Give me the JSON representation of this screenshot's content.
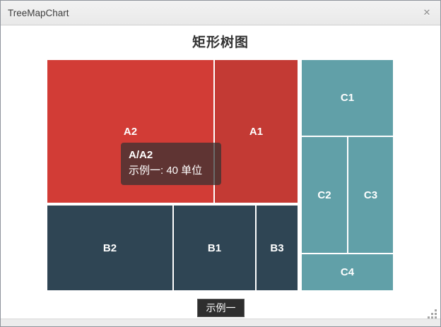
{
  "window": {
    "title": "TreeMapChart",
    "close_glyph": "✕"
  },
  "chart_data": {
    "type": "treemap",
    "title": "矩形树图",
    "series_name": "示例一",
    "value_unit": "单位",
    "breadcrumb": "示例一",
    "tooltip": {
      "path": "A/A2",
      "detail": "示例一: 40 单位",
      "value": 40
    },
    "colors": {
      "group_a": "#d23c36",
      "group_a_dark": "#c33a34",
      "group_b": "#2f4554",
      "group_c": "#61a0a8",
      "tooltip_bg": "rgba(50,50,50,0.72)",
      "breadcrumb_bg": "#2e2e2e"
    },
    "nodes": [
      {
        "label": "A2",
        "group": "A",
        "color": "#d23c36",
        "value": 40
      },
      {
        "label": "A1",
        "group": "A",
        "color": "#c33a34",
        "estimated_value": 20
      },
      {
        "label": "B2",
        "group": "B",
        "color": "#2f4554",
        "estimated_value": 18
      },
      {
        "label": "B1",
        "group": "B",
        "color": "#2f4554",
        "estimated_value": 12
      },
      {
        "label": "B3",
        "group": "B",
        "color": "#2f4554",
        "estimated_value": 6
      },
      {
        "label": "C1",
        "group": "C",
        "color": "#61a0a8",
        "estimated_value": 12
      },
      {
        "label": "C2",
        "group": "C",
        "color": "#61a0a8",
        "estimated_value": 9
      },
      {
        "label": "C3",
        "group": "C",
        "color": "#61a0a8",
        "estimated_value": 9
      },
      {
        "label": "C4",
        "group": "C",
        "color": "#61a0a8",
        "estimated_value": 6
      }
    ]
  }
}
